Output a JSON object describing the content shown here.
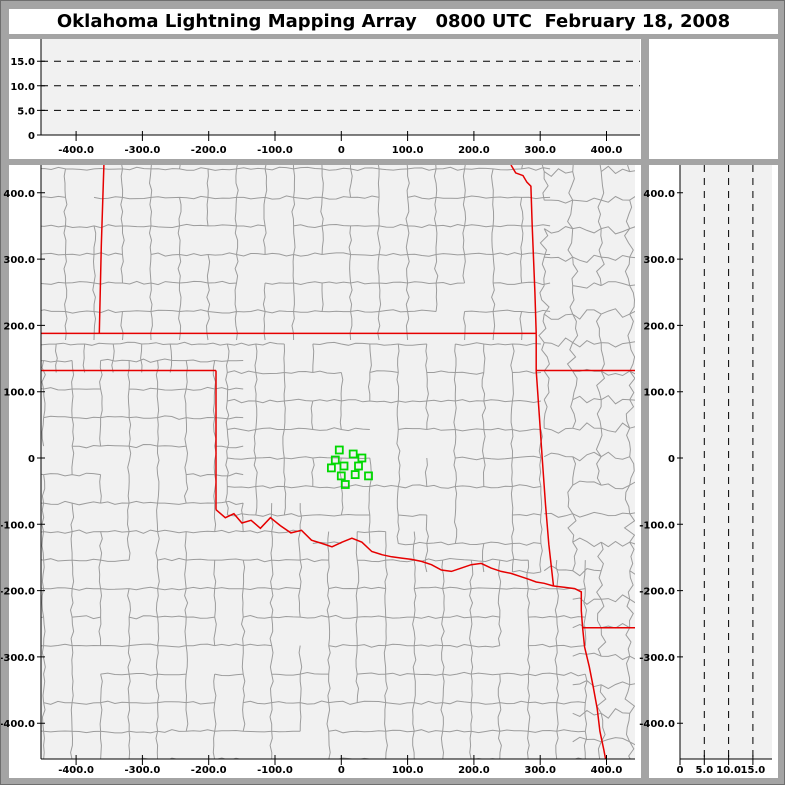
{
  "title": "Oklahoma Lightning Mapping Array   0800 UTC  February 18, 2008",
  "colors": {
    "frame_gray": "#a4a4a4",
    "panel_white": "#ffffff",
    "plot_bg": "#f1f1f1",
    "county_line": "#9c9c9c",
    "state_border": "#e60000",
    "station_green": "#00d800",
    "axis_black": "#000000"
  },
  "chart_data": {
    "type": "scatter",
    "title": "Oklahoma Lightning Mapping Array   0800 UTC  February 18, 2008",
    "description": "LMA display: plan-view map (km east-west vs km north-south) with network station markers; empty altitude projection panels above (E-W vs altitude km) and right (altitude km vs N-S) with dashed reference lines at 5, 10, 15 km.",
    "distance_ticks": [
      {
        "v": -400,
        "label": "-400.0"
      },
      {
        "v": -300,
        "label": "-300.0"
      },
      {
        "v": -200,
        "label": "-200.0"
      },
      {
        "v": -100,
        "label": "-100.0"
      },
      {
        "v": 0,
        "label": "0"
      },
      {
        "v": 100,
        "label": "100.0"
      },
      {
        "v": 200,
        "label": "200.0"
      },
      {
        "v": 300,
        "label": "300.0"
      },
      {
        "v": 400,
        "label": "400.0"
      }
    ],
    "altitude_ticks": [
      {
        "v": 0,
        "label": "0"
      },
      {
        "v": 5,
        "label": "5.0"
      },
      {
        "v": 10,
        "label": "10.0"
      },
      {
        "v": 15,
        "label": "15.0"
      }
    ],
    "dashed_altitude_levels_km": [
      5,
      10,
      15
    ],
    "plan_view": {
      "xlim_km": [
        -453,
        443
      ],
      "ylim_km": [
        -454,
        442
      ],
      "grid": false,
      "stations_km": [
        [
          -3,
          12
        ],
        [
          18,
          6
        ],
        [
          31,
          0
        ],
        [
          -9,
          -3
        ],
        [
          -15,
          -15
        ],
        [
          4,
          -12
        ],
        [
          26,
          -12
        ],
        [
          0,
          -27
        ],
        [
          21,
          -25
        ],
        [
          41,
          -27
        ],
        [
          6,
          -40
        ]
      ]
    },
    "ew_projection": {
      "alt_lim_km": [
        0,
        19.5
      ],
      "series": []
    },
    "ns_projection": {
      "alt_lim_km": [
        0,
        18.9
      ],
      "series": []
    },
    "state_borders_km": {
      "ks_co": [
        [
          -358,
          442
        ],
        [
          -362,
          320
        ],
        [
          -365,
          188
        ]
      ],
      "ks_ok": [
        [
          -453,
          188
        ],
        [
          294,
          188
        ]
      ],
      "ks_mo": [
        [
          256,
          442
        ],
        [
          263,
          430
        ],
        [
          274,
          426
        ],
        [
          280,
          416
        ],
        [
          286,
          410
        ],
        [
          288,
          350
        ],
        [
          292,
          250
        ],
        [
          294,
          188
        ]
      ],
      "ok_mo": [
        [
          294,
          188
        ],
        [
          294,
          132
        ]
      ],
      "mo_ar": [
        [
          294,
          132
        ],
        [
          443,
          132
        ]
      ],
      "ok_ar": [
        [
          294,
          132
        ],
        [
          299,
          60
        ],
        [
          303,
          0
        ],
        [
          308,
          -70
        ],
        [
          313,
          -130
        ],
        [
          320,
          -193
        ]
      ],
      "ok_tx_panhandle_n": [
        [
          -453,
          132
        ],
        [
          -189,
          132
        ]
      ],
      "tx_panhandle_e": [
        [
          -189,
          132
        ],
        [
          -189,
          -78
        ]
      ],
      "red_river": [
        [
          -189,
          -78
        ],
        [
          -175,
          -90
        ],
        [
          -162,
          -84
        ],
        [
          -150,
          -98
        ],
        [
          -136,
          -94
        ],
        [
          -122,
          -106
        ],
        [
          -107,
          -90
        ],
        [
          -92,
          -102
        ],
        [
          -76,
          -113
        ],
        [
          -60,
          -109
        ],
        [
          -45,
          -124
        ],
        [
          -29,
          -129
        ],
        [
          -14,
          -134
        ],
        [
          1,
          -127
        ],
        [
          16,
          -121
        ],
        [
          31,
          -127
        ],
        [
          46,
          -141
        ],
        [
          62,
          -146
        ],
        [
          76,
          -149
        ],
        [
          91,
          -151
        ],
        [
          106,
          -153
        ],
        [
          121,
          -156
        ],
        [
          136,
          -161
        ],
        [
          151,
          -169
        ],
        [
          166,
          -171
        ],
        [
          181,
          -166
        ],
        [
          196,
          -161
        ],
        [
          211,
          -159
        ],
        [
          226,
          -166
        ],
        [
          241,
          -171
        ],
        [
          256,
          -174
        ],
        [
          271,
          -179
        ],
        [
          283,
          -183
        ],
        [
          294,
          -187
        ],
        [
          306,
          -189
        ],
        [
          320,
          -193
        ]
      ],
      "tx_ar": [
        [
          320,
          -193
        ],
        [
          336,
          -195
        ],
        [
          352,
          -197
        ],
        [
          362,
          -202
        ],
        [
          362,
          -230
        ],
        [
          364,
          -256
        ],
        [
          367,
          -285
        ],
        [
          374,
          -315
        ],
        [
          380,
          -345
        ],
        [
          386,
          -378
        ],
        [
          390,
          -412
        ],
        [
          396,
          -440
        ],
        [
          399,
          -456
        ]
      ],
      "ar_la": [
        [
          364,
          -256
        ],
        [
          443,
          -256
        ]
      ]
    }
  }
}
